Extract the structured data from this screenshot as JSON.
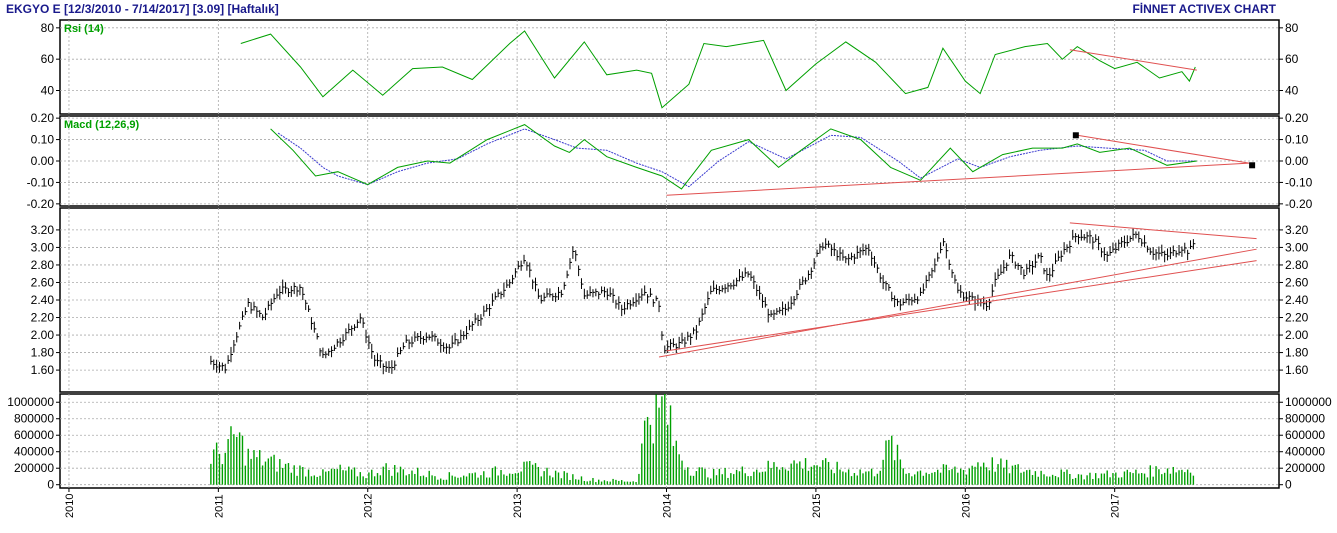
{
  "header": {
    "title_left": "EKGYO E  [12/3/2010 - 7/14/2017]  [3.09]  [Haftalık]",
    "title_right": "FİNNET ACTIVEX CHART"
  },
  "colors": {
    "header_text": "#1a1a8c",
    "grid": "#aaaaaa",
    "price_bars": "#000000",
    "rsi_line": "#00a000",
    "macd_line": "#00a000",
    "macd_signal": "#3b3bcf",
    "volume_bars": "#00a000",
    "trendline": "#e05050",
    "panel_border": "#000000"
  },
  "chart_data": [
    {
      "id": "rsi",
      "type": "line",
      "title": "Rsi (14)",
      "ylim": [
        25,
        85
      ],
      "y_ticks": [
        20,
        40,
        60,
        80
      ],
      "grid": true,
      "points": [
        [
          2011.15,
          70
        ],
        [
          2011.35,
          76
        ],
        [
          2011.55,
          55
        ],
        [
          2011.7,
          36
        ],
        [
          2011.9,
          53
        ],
        [
          2012.1,
          37
        ],
        [
          2012.3,
          54
        ],
        [
          2012.5,
          55
        ],
        [
          2012.7,
          47
        ],
        [
          2012.95,
          70
        ],
        [
          2013.05,
          78
        ],
        [
          2013.25,
          48
        ],
        [
          2013.45,
          71
        ],
        [
          2013.6,
          50
        ],
        [
          2013.8,
          53
        ],
        [
          2013.9,
          51
        ],
        [
          2013.97,
          29
        ],
        [
          2014.15,
          44
        ],
        [
          2014.25,
          70
        ],
        [
          2014.4,
          68
        ],
        [
          2014.65,
          72
        ],
        [
          2014.8,
          40
        ],
        [
          2015.0,
          57
        ],
        [
          2015.2,
          71
        ],
        [
          2015.4,
          58
        ],
        [
          2015.6,
          38
        ],
        [
          2015.75,
          42
        ],
        [
          2015.85,
          67
        ],
        [
          2016.0,
          46
        ],
        [
          2016.1,
          38
        ],
        [
          2016.2,
          63
        ],
        [
          2016.4,
          68
        ],
        [
          2016.55,
          70
        ],
        [
          2016.65,
          60
        ],
        [
          2016.75,
          68
        ],
        [
          2016.9,
          59
        ],
        [
          2017.0,
          54
        ],
        [
          2017.15,
          58
        ],
        [
          2017.3,
          48
        ],
        [
          2017.45,
          52
        ],
        [
          2017.5,
          46
        ],
        [
          2017.54,
          55
        ]
      ],
      "trendlines": [
        [
          [
            2016.7,
            66
          ],
          [
            2017.55,
            53
          ]
        ]
      ]
    },
    {
      "id": "macd",
      "type": "line",
      "title": "Macd (12,26,9)",
      "ylim": [
        -0.21,
        0.21
      ],
      "y_ticks": [
        -0.2,
        -0.1,
        0.0,
        0.1,
        0.2
      ],
      "grid": true,
      "series": [
        {
          "points": [
            [
              2011.35,
              0.15
            ],
            [
              2011.5,
              0.05
            ],
            [
              2011.65,
              -0.07
            ],
            [
              2011.8,
              -0.05
            ],
            [
              2012.0,
              -0.11
            ],
            [
              2012.2,
              -0.03
            ],
            [
              2012.4,
              0.0
            ],
            [
              2012.55,
              -0.01
            ],
            [
              2012.8,
              0.1
            ],
            [
              2013.05,
              0.17
            ],
            [
              2013.25,
              0.07
            ],
            [
              2013.35,
              0.04
            ],
            [
              2013.45,
              0.1
            ],
            [
              2013.6,
              0.02
            ],
            [
              2013.8,
              -0.03
            ],
            [
              2013.97,
              -0.07
            ],
            [
              2014.1,
              -0.13
            ],
            [
              2014.3,
              0.05
            ],
            [
              2014.55,
              0.1
            ],
            [
              2014.75,
              -0.03
            ],
            [
              2014.9,
              0.05
            ],
            [
              2015.1,
              0.15
            ],
            [
              2015.3,
              0.1
            ],
            [
              2015.5,
              -0.03
            ],
            [
              2015.7,
              -0.09
            ],
            [
              2015.9,
              0.06
            ],
            [
              2016.05,
              -0.05
            ],
            [
              2016.25,
              0.03
            ],
            [
              2016.45,
              0.06
            ],
            [
              2016.65,
              0.06
            ],
            [
              2016.75,
              0.08
            ],
            [
              2016.9,
              0.04
            ],
            [
              2017.1,
              0.06
            ],
            [
              2017.35,
              -0.02
            ],
            [
              2017.55,
              0.0
            ]
          ]
        },
        {
          "points": [
            [
              2011.4,
              0.13
            ],
            [
              2011.55,
              0.06
            ],
            [
              2011.7,
              -0.03
            ],
            [
              2011.8,
              -0.07
            ],
            [
              2012.0,
              -0.11
            ],
            [
              2012.2,
              -0.05
            ],
            [
              2012.4,
              -0.01
            ],
            [
              2012.6,
              0.01
            ],
            [
              2012.8,
              0.08
            ],
            [
              2013.05,
              0.15
            ],
            [
              2013.25,
              0.1
            ],
            [
              2013.4,
              0.06
            ],
            [
              2013.6,
              0.05
            ],
            [
              2013.8,
              -0.01
            ],
            [
              2013.97,
              -0.05
            ],
            [
              2014.15,
              -0.12
            ],
            [
              2014.35,
              0.0
            ],
            [
              2014.55,
              0.09
            ],
            [
              2014.8,
              0.01
            ],
            [
              2015.1,
              0.12
            ],
            [
              2015.3,
              0.11
            ],
            [
              2015.55,
              0.0
            ],
            [
              2015.7,
              -0.08
            ],
            [
              2015.95,
              0.01
            ],
            [
              2016.1,
              -0.03
            ],
            [
              2016.3,
              0.02
            ],
            [
              2016.5,
              0.05
            ],
            [
              2016.75,
              0.07
            ],
            [
              2016.95,
              0.06
            ],
            [
              2017.2,
              0.05
            ],
            [
              2017.35,
              0.0
            ],
            [
              2017.55,
              0.0
            ]
          ]
        }
      ],
      "trendlines": [
        [
          [
            2014.0,
            -0.16
          ],
          [
            2017.9,
            -0.01
          ]
        ],
        [
          [
            2016.75,
            0.12
          ],
          [
            2017.9,
            -0.01
          ]
        ]
      ],
      "markers": [
        [
          2016.74,
          0.12
        ],
        [
          2017.92,
          -0.02
        ]
      ]
    },
    {
      "id": "price",
      "type": "bar",
      "ylim": [
        1.35,
        3.45
      ],
      "y_ticks": [
        1.6,
        1.8,
        2.0,
        2.2,
        2.4,
        2.6,
        2.8,
        3.0,
        3.2
      ],
      "grid": true,
      "anchors": [
        [
          2010.95,
          1.7
        ],
        [
          2011.05,
          1.62
        ],
        [
          2011.1,
          1.9
        ],
        [
          2011.2,
          2.35
        ],
        [
          2011.3,
          2.2
        ],
        [
          2011.4,
          2.5
        ],
        [
          2011.55,
          2.55
        ],
        [
          2011.7,
          1.75
        ],
        [
          2011.85,
          2.0
        ],
        [
          2011.95,
          2.2
        ],
        [
          2012.05,
          1.7
        ],
        [
          2012.15,
          1.6
        ],
        [
          2012.25,
          1.9
        ],
        [
          2012.4,
          2.0
        ],
        [
          2012.55,
          1.85
        ],
        [
          2012.75,
          2.2
        ],
        [
          2012.95,
          2.6
        ],
        [
          2013.05,
          2.9
        ],
        [
          2013.15,
          2.4
        ],
        [
          2013.3,
          2.5
        ],
        [
          2013.38,
          3.0
        ],
        [
          2013.45,
          2.45
        ],
        [
          2013.6,
          2.5
        ],
        [
          2013.7,
          2.3
        ],
        [
          2013.85,
          2.5
        ],
        [
          2013.95,
          2.35
        ],
        [
          2013.98,
          1.85
        ],
        [
          2014.1,
          1.9
        ],
        [
          2014.2,
          2.05
        ],
        [
          2014.3,
          2.5
        ],
        [
          2014.45,
          2.6
        ],
        [
          2014.55,
          2.7
        ],
        [
          2014.7,
          2.2
        ],
        [
          2014.8,
          2.3
        ],
        [
          2014.95,
          2.7
        ],
        [
          2015.05,
          3.05
        ],
        [
          2015.2,
          2.85
        ],
        [
          2015.35,
          3.0
        ],
        [
          2015.45,
          2.6
        ],
        [
          2015.55,
          2.35
        ],
        [
          2015.7,
          2.45
        ],
        [
          2015.8,
          2.8
        ],
        [
          2015.85,
          3.1
        ],
        [
          2015.95,
          2.5
        ],
        [
          2016.05,
          2.4
        ],
        [
          2016.15,
          2.35
        ],
        [
          2016.2,
          2.6
        ],
        [
          2016.3,
          2.9
        ],
        [
          2016.4,
          2.7
        ],
        [
          2016.5,
          2.9
        ],
        [
          2016.55,
          2.65
        ],
        [
          2016.65,
          2.95
        ],
        [
          2016.75,
          3.15
        ],
        [
          2016.85,
          3.1
        ],
        [
          2016.95,
          2.9
        ],
        [
          2017.05,
          3.05
        ],
        [
          2017.15,
          3.15
        ],
        [
          2017.25,
          2.95
        ],
        [
          2017.35,
          2.9
        ],
        [
          2017.45,
          3.0
        ],
        [
          2017.5,
          2.95
        ],
        [
          2017.54,
          3.09
        ]
      ],
      "trendlines": [
        [
          [
            2013.95,
            1.75
          ],
          [
            2017.95,
            2.98
          ]
        ],
        [
          [
            2014.0,
            1.82
          ],
          [
            2017.95,
            2.85
          ]
        ],
        [
          [
            2016.7,
            3.28
          ],
          [
            2017.95,
            3.1
          ]
        ]
      ]
    },
    {
      "id": "volume",
      "type": "bar",
      "ylim": [
        -40000,
        1100000
      ],
      "y_ticks": [
        0,
        200000,
        400000,
        600000,
        800000,
        1000000
      ],
      "grid": true,
      "anchors": [
        [
          2010.95,
          350000
        ],
        [
          2011.05,
          400000
        ],
        [
          2011.12,
          600000
        ],
        [
          2011.2,
          350000
        ],
        [
          2011.5,
          200000
        ],
        [
          2011.7,
          130000
        ],
        [
          2011.8,
          180000
        ],
        [
          2012.0,
          120000
        ],
        [
          2012.1,
          200000
        ],
        [
          2012.3,
          160000
        ],
        [
          2012.5,
          100000
        ],
        [
          2012.8,
          140000
        ],
        [
          2013.0,
          200000
        ],
        [
          2013.1,
          200000
        ],
        [
          2013.3,
          120000
        ],
        [
          2013.5,
          60000
        ],
        [
          2013.8,
          40000
        ],
        [
          2013.88,
          950000
        ],
        [
          2013.95,
          800000
        ],
        [
          2013.98,
          1050000
        ],
        [
          2014.05,
          500000
        ],
        [
          2014.15,
          200000
        ],
        [
          2014.3,
          130000
        ],
        [
          2014.6,
          180000
        ],
        [
          2014.8,
          260000
        ],
        [
          2015.0,
          250000
        ],
        [
          2015.2,
          170000
        ],
        [
          2015.4,
          150000
        ],
        [
          2015.5,
          500000
        ],
        [
          2015.6,
          150000
        ],
        [
          2015.8,
          170000
        ],
        [
          2016.0,
          180000
        ],
        [
          2016.1,
          280000
        ],
        [
          2016.3,
          200000
        ],
        [
          2016.5,
          150000
        ],
        [
          2016.6,
          140000
        ],
        [
          2016.8,
          110000
        ],
        [
          2017.0,
          130000
        ],
        [
          2017.2,
          150000
        ],
        [
          2017.35,
          200000
        ],
        [
          2017.45,
          180000
        ],
        [
          2017.54,
          200000
        ]
      ]
    }
  ],
  "x_axis": {
    "domain": [
      2009.94,
      2018.1
    ],
    "ticks": [
      {
        "value": 2010.0,
        "label": "2010"
      },
      {
        "value": 2011.0,
        "label": "2011"
      },
      {
        "value": 2012.0,
        "label": "2012"
      },
      {
        "value": 2013.0,
        "label": "2013"
      },
      {
        "value": 2014.0,
        "label": "2014"
      },
      {
        "value": 2015.0,
        "label": "2015"
      },
      {
        "value": 2016.0,
        "label": "2016"
      },
      {
        "value": 2017.0,
        "label": "2017"
      }
    ]
  }
}
